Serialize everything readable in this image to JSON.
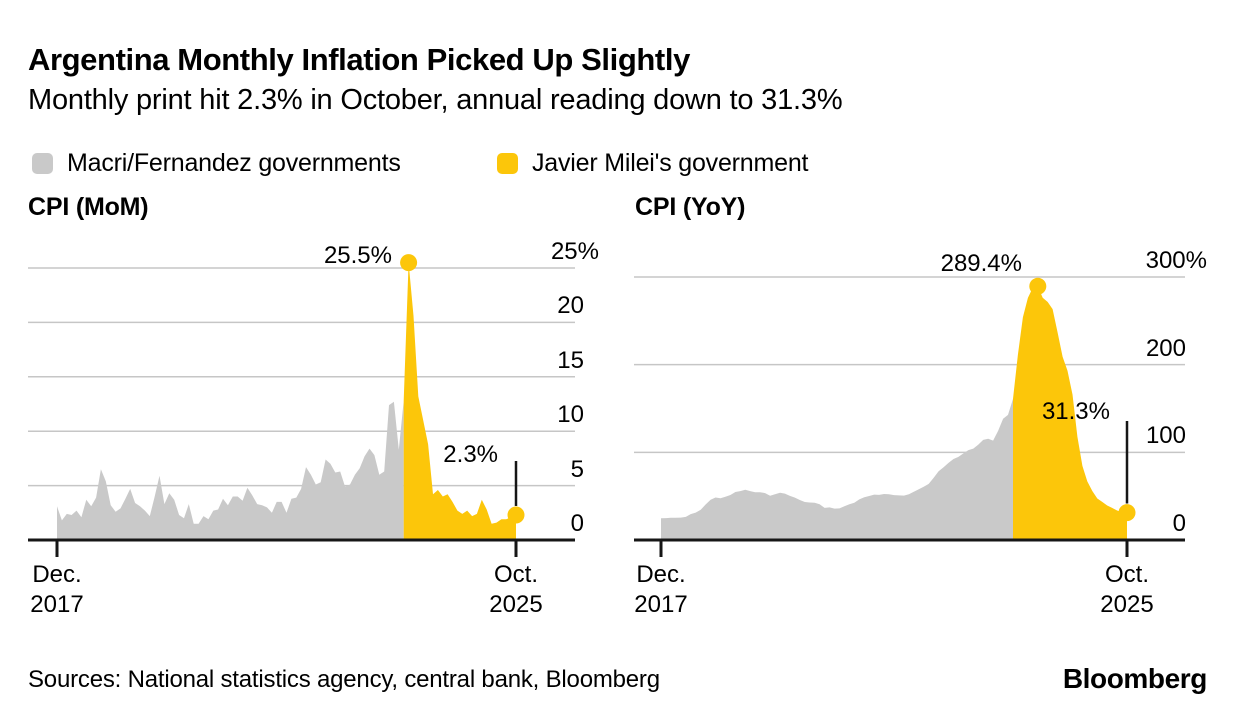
{
  "page": {
    "title": "Argentina Monthly Inflation Picked Up Slightly",
    "subtitle": "Monthly print hit 2.3% in October, annual reading down to 31.3%",
    "sources": "Sources: National statistics agency, central bank, Bloomberg",
    "brand": "Bloomberg"
  },
  "colors": {
    "series_past": "#c9c9c9",
    "series_current": "#fcc60a",
    "gridline": "#c6c6c6",
    "axis": "#161616",
    "text": "#000000",
    "background": "#ffffff"
  },
  "legend": [
    {
      "label": "Macri/Fernandez governments",
      "color_key": "series_past"
    },
    {
      "label": "Javier Milei's government",
      "color_key": "series_current"
    }
  ],
  "chart_data": [
    {
      "type": "area",
      "title": "CPI (MoM)",
      "unit": "percent month-over-month",
      "frequency": "monthly",
      "x_range": [
        "Dec. 2017",
        "Oct. 2025"
      ],
      "ylim": [
        0,
        25
      ],
      "grid": true,
      "legend_position": "top",
      "y_ticks": [
        {
          "value": 25,
          "label": "25%"
        },
        {
          "value": 20,
          "label": "20"
        },
        {
          "value": 15,
          "label": "15"
        },
        {
          "value": 10,
          "label": "10"
        },
        {
          "value": 5,
          "label": "5"
        },
        {
          "value": 0,
          "label": "0"
        }
      ],
      "x_axis": {
        "start": [
          "Dec.",
          "2017"
        ],
        "end": [
          "Oct.",
          "2025"
        ]
      },
      "series": [
        {
          "name": "Macri/Fernandez governments",
          "values": [
            3.1,
            1.8,
            2.4,
            2.3,
            2.7,
            2.1,
            3.7,
            3.1,
            3.9,
            6.5,
            5.4,
            3.2,
            2.6,
            2.9,
            3.8,
            4.7,
            3.4,
            3.1,
            2.7,
            2.2,
            4.0,
            5.9,
            3.3,
            4.3,
            3.7,
            2.3,
            2.0,
            3.3,
            1.5,
            1.5,
            2.2,
            1.9,
            2.7,
            2.8,
            3.8,
            3.2,
            4.0,
            4.0,
            3.6,
            4.8,
            4.1,
            3.3,
            3.2,
            3.0,
            2.5,
            3.5,
            3.5,
            2.5,
            3.8,
            3.9,
            4.7,
            6.7,
            6.0,
            5.1,
            5.3,
            7.4,
            7.0,
            6.2,
            6.3,
            4.9,
            5.1,
            6.0,
            6.6,
            7.7,
            8.4,
            7.8,
            6.0,
            6.3,
            12.4,
            12.7,
            8.3,
            12.8
          ]
        },
        {
          "name": "Javier Milei's government",
          "values": [
            25.5,
            20.6,
            13.2,
            11.0,
            8.8,
            4.2,
            4.6,
            4.0,
            4.2,
            3.5,
            2.7,
            2.4,
            2.7,
            2.2,
            2.4,
            3.7,
            2.8,
            1.5,
            1.6,
            1.9,
            1.9,
            2.1,
            2.3
          ]
        }
      ],
      "annotations": {
        "peak": {
          "label": "25.5%",
          "value": 25.5,
          "x": "Dec. 2023"
        },
        "latest": {
          "label": "2.3%",
          "value": 2.3,
          "x": "Oct. 2025"
        }
      }
    },
    {
      "type": "area",
      "title": "CPI (YoY)",
      "unit": "percent year-over-year",
      "frequency": "monthly",
      "x_range": [
        "Dec. 2017",
        "Oct. 2025"
      ],
      "ylim": [
        0,
        300
      ],
      "grid": true,
      "legend_position": "top",
      "y_ticks": [
        {
          "value": 300,
          "label": "300%"
        },
        {
          "value": 200,
          "label": "200"
        },
        {
          "value": 100,
          "label": "100"
        },
        {
          "value": 0,
          "label": "0"
        }
      ],
      "x_axis": {
        "start": [
          "Dec.",
          "2017"
        ],
        "end": [
          "Oct.",
          "2025"
        ]
      },
      "series": [
        {
          "name": "Macri/Fernandez governments",
          "values": [
            24.8,
            25.0,
            25.4,
            25.4,
            25.5,
            26.3,
            29.5,
            31.2,
            34.4,
            40.5,
            45.9,
            48.5,
            47.6,
            49.3,
            51.3,
            54.7,
            55.8,
            57.3,
            55.8,
            54.4,
            54.5,
            53.5,
            50.5,
            52.1,
            53.8,
            52.9,
            50.3,
            48.4,
            45.6,
            43.4,
            42.8,
            42.4,
            40.7,
            36.6,
            37.2,
            35.8,
            36.1,
            38.5,
            40.7,
            42.6,
            46.3,
            48.8,
            50.2,
            51.8,
            51.4,
            52.5,
            52.1,
            51.2,
            50.9,
            50.7,
            52.3,
            55.1,
            58.0,
            60.7,
            64.0,
            71.0,
            78.5,
            83.0,
            88.0,
            92.4,
            94.8,
            98.8,
            102.5,
            104.3,
            108.8,
            114.2,
            115.6,
            113.4,
            124.4,
            138.3,
            142.7,
            160.9
          ]
        },
        {
          "name": "Javier Milei's government",
          "values": [
            211.4,
            254.2,
            276.2,
            287.9,
            289.4,
            276.4,
            271.5,
            263.4,
            236.7,
            209.0,
            193.0,
            166.0,
            117.8,
            84.5,
            66.9,
            55.9,
            47.3,
            43.5,
            39.4,
            36.6,
            33.6,
            31.8,
            31.3
          ]
        }
      ],
      "annotations": {
        "peak": {
          "label": "289.4%",
          "value": 289.4,
          "x": "Apr. 2024"
        },
        "latest": {
          "label": "31.3%",
          "value": 31.3,
          "x": "Oct. 2025"
        }
      }
    }
  ]
}
